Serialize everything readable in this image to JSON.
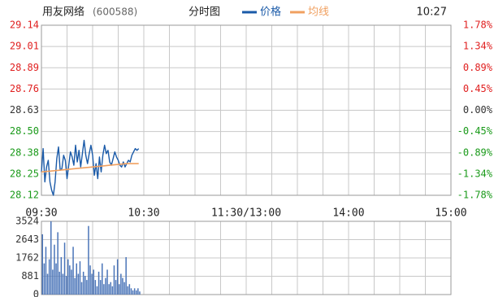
{
  "header": {
    "stock_name": "用友网络",
    "stock_code": "(600588)",
    "chart_title": "分时图",
    "legend_price": "价格",
    "legend_avg": "均线",
    "time": "10:27"
  },
  "colors": {
    "grid": "#c8c8c8",
    "border": "#9a9a9a",
    "up": "#e02020",
    "down": "#1a9a1a",
    "flat": "#333333",
    "price_line": "#1a5aa8",
    "avg_line": "#f0a060",
    "volume_bar": "#4a74b8"
  },
  "chart_data": [
    {
      "type": "line",
      "title": "分时图",
      "x_ticks": [
        "09:30",
        "10:30",
        "11:30/13:00",
        "14:00",
        "15:00"
      ],
      "y_ticks_price": [
        "29.14",
        "29.01",
        "28.89",
        "28.76",
        "28.63",
        "28.50",
        "28.38",
        "28.25",
        "28.12"
      ],
      "y_ticks_percent": [
        "1.78%",
        "1.34%",
        "0.89%",
        "0.45%",
        "0.00%",
        "-0.45%",
        "-0.89%",
        "-1.34%",
        "-1.78%"
      ],
      "ylim": [
        28.12,
        29.14
      ],
      "prev_close": 28.63,
      "series": [
        {
          "name": "价格",
          "minute_index": [
            0,
            1,
            2,
            3,
            4,
            5,
            6,
            7,
            8,
            9,
            10,
            11,
            12,
            13,
            14,
            15,
            16,
            17,
            18,
            19,
            20,
            21,
            22,
            23,
            24,
            25,
            26,
            27,
            28,
            29,
            30,
            31,
            32,
            33,
            34,
            35,
            36,
            37,
            38,
            39,
            40,
            41,
            42,
            43,
            44,
            45,
            46,
            47,
            48,
            49,
            50,
            51,
            52,
            53,
            54,
            55,
            56,
            57
          ],
          "values": [
            28.26,
            28.4,
            28.2,
            28.29,
            28.33,
            28.2,
            28.15,
            28.12,
            28.2,
            28.34,
            28.41,
            28.27,
            28.28,
            28.36,
            28.33,
            28.22,
            28.3,
            28.38,
            28.35,
            28.3,
            28.42,
            28.32,
            28.39,
            28.29,
            28.37,
            28.45,
            28.36,
            28.31,
            28.37,
            28.42,
            28.36,
            28.24,
            28.31,
            28.22,
            28.35,
            28.26,
            28.36,
            28.42,
            28.37,
            28.39,
            28.32,
            28.3,
            28.34,
            28.38,
            28.35,
            28.33,
            28.3,
            28.29,
            28.32,
            28.29,
            28.31,
            28.33,
            28.32,
            28.36,
            28.38,
            28.4,
            28.39,
            28.4
          ]
        },
        {
          "name": "均线",
          "minute_index": [
            0,
            10,
            20,
            30,
            40,
            50,
            57
          ],
          "values": [
            28.26,
            28.27,
            28.28,
            28.29,
            28.3,
            28.31,
            28.31
          ]
        }
      ]
    },
    {
      "type": "bar",
      "title": "",
      "y_ticks": [
        "3524",
        "2643",
        "1762",
        "881",
        "0"
      ],
      "ylim": [
        0,
        3524
      ],
      "series": [
        {
          "name": "",
          "minute_index": [
            0,
            1,
            2,
            3,
            4,
            5,
            6,
            7,
            8,
            9,
            10,
            11,
            12,
            13,
            14,
            15,
            16,
            17,
            18,
            19,
            20,
            21,
            22,
            23,
            24,
            25,
            26,
            27,
            28,
            29,
            30,
            31,
            32,
            33,
            34,
            35,
            36,
            37,
            38,
            39,
            40,
            41,
            42,
            43,
            44,
            45,
            46,
            47,
            48,
            49,
            50,
            51,
            52,
            53,
            54,
            55,
            56,
            57
          ],
          "values": [
            2900,
            1500,
            2300,
            1000,
            1700,
            3524,
            1200,
            2400,
            1500,
            3000,
            1100,
            1800,
            1000,
            2500,
            900,
            1700,
            1400,
            1200,
            2300,
            800,
            1500,
            1000,
            1600,
            600,
            1100,
            900,
            700,
            3300,
            1400,
            1000,
            1200,
            700,
            400,
            1100,
            700,
            1500,
            500,
            800,
            1200,
            500,
            600,
            400,
            1400,
            700,
            1700,
            500,
            1000,
            800,
            600,
            1800,
            400,
            500,
            300,
            200,
            300,
            200,
            300,
            150
          ]
        }
      ]
    }
  ]
}
